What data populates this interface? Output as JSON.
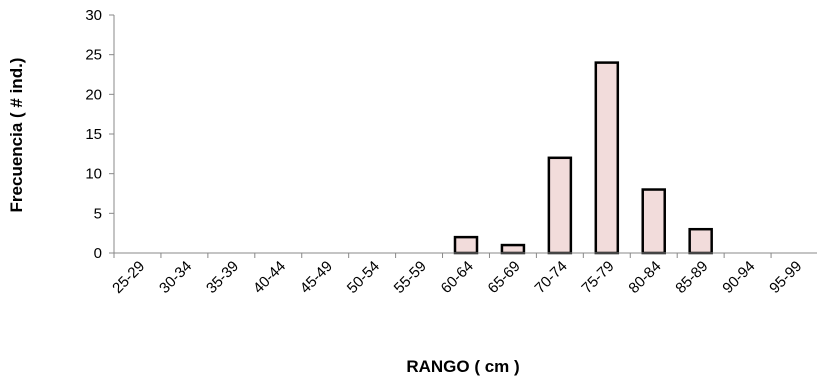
{
  "chart_data": {
    "type": "bar",
    "title": "",
    "xlabel": "RANGO ( cm )",
    "ylabel": "Frecuencia ( # ind.)",
    "ylim": [
      0,
      30
    ],
    "yticks": [
      0,
      5,
      10,
      15,
      20,
      25,
      30
    ],
    "grid": false,
    "legend": "none",
    "bar_color": "#f2dcdb",
    "bar_edge_color": "#000000",
    "categories": [
      "25-29",
      "30-34",
      "35-39",
      "40-44",
      "45-49",
      "50-54",
      "55-59",
      "60-64",
      "65-69",
      "70-74",
      "75-79",
      "80-84",
      "85-89",
      "90-94",
      "95-99"
    ],
    "values": [
      0,
      0,
      0,
      0,
      0,
      0,
      0,
      2,
      1,
      12,
      24,
      8,
      3,
      0,
      0
    ]
  }
}
